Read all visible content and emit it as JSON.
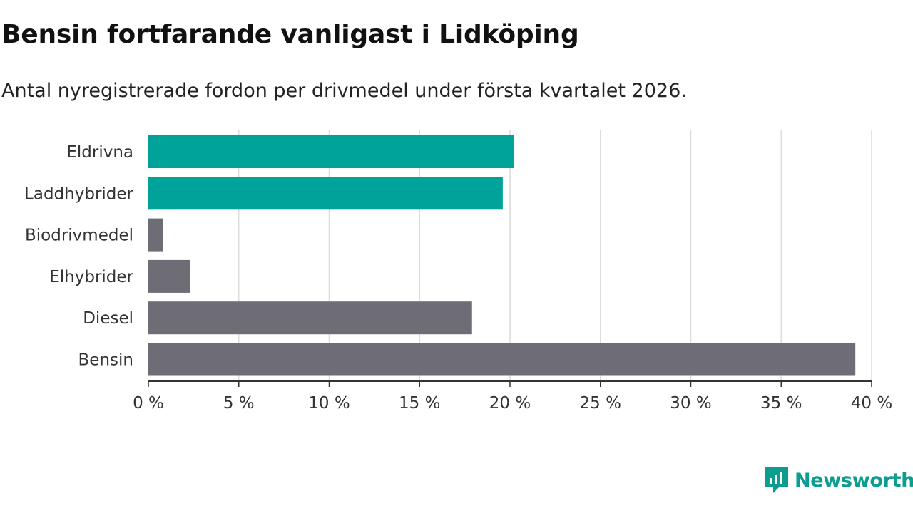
{
  "header": {
    "title": "Bensin fortfarande vanligast i Lidköping",
    "subtitle": "Antal nyregistrerade fordon per drivmedel under första kvartalet 2026."
  },
  "chart_data": {
    "type": "bar",
    "orientation": "horizontal",
    "title": "Bensin fortfarande vanligast i Lidköping",
    "subtitle": "Antal nyregistrerade fordon per drivmedel under första kvartalet 2026.",
    "xlabel": "",
    "ylabel": "",
    "xlim": [
      0,
      40
    ],
    "grid": true,
    "unit_suffix": " %",
    "categories": [
      "Eldrivna",
      "Laddhybrider",
      "Biodrivmedel",
      "Elhybrider",
      "Diesel",
      "Bensin"
    ],
    "values": [
      20.2,
      19.6,
      0.8,
      2.3,
      17.9,
      39.1
    ],
    "highlighted": [
      true,
      true,
      false,
      false,
      false,
      false
    ],
    "ticks": [
      0,
      5,
      10,
      15,
      20,
      25,
      30,
      35,
      40
    ],
    "tick_labels": [
      "0 %",
      "5 %",
      "10 %",
      "15 %",
      "20 %",
      "25 %",
      "30 %",
      "35 %",
      "40 %"
    ]
  },
  "colors": {
    "highlight": "#00a399",
    "default": "#6e6d76",
    "grid": "#dcdcdc",
    "axis": "#333333",
    "brand": "#0b9e90"
  },
  "footer": {
    "brand_name": "Newsworthy",
    "brand_icon": "newsworthy-logo-icon"
  }
}
